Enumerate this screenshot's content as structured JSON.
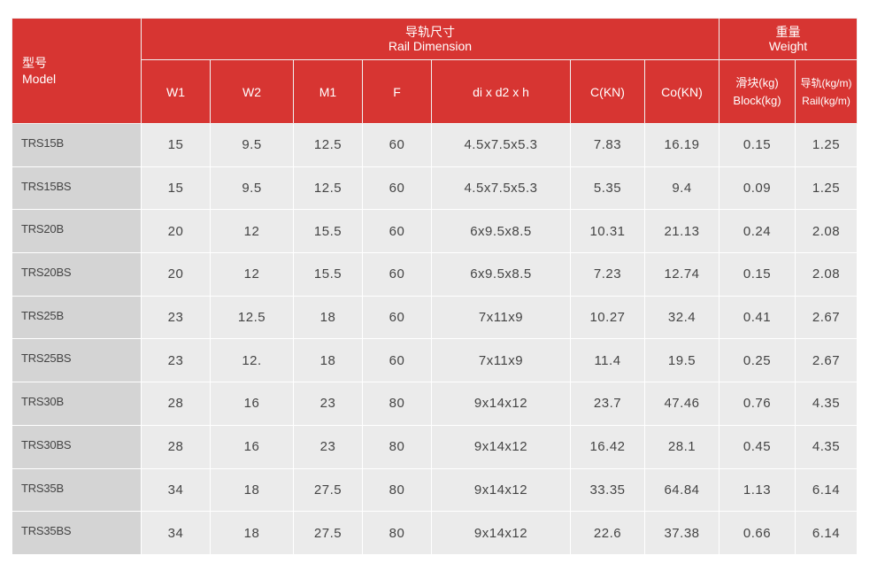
{
  "header": {
    "model": {
      "cn": "型号",
      "en": "Model"
    },
    "rail_dimension": {
      "cn": "导轨尺寸",
      "en": "Rail Dimension"
    },
    "weight": {
      "cn": "重量",
      "en": "Weight"
    },
    "columns": {
      "w1": "W1",
      "w2": "W2",
      "m1": "M1",
      "f": "F",
      "dims": "di x d2 x h",
      "c": "C(KN)",
      "co": "Co(KN)",
      "block_cn": "滑块(kg)",
      "block_en": "Block(kg)",
      "rail_cn": "导轨(kg/m)",
      "rail_en": "Rail(kg/m)"
    }
  },
  "rows": [
    {
      "model": "TRS15B",
      "w1": "15",
      "w2": "9.5",
      "m1": "12.5",
      "f": "60",
      "dims": "4.5x7.5x5.3",
      "c": "7.83",
      "co": "16.19",
      "block": "0.15",
      "rail": "1.25"
    },
    {
      "model": "TRS15BS",
      "w1": "15",
      "w2": "9.5",
      "m1": "12.5",
      "f": "60",
      "dims": "4.5x7.5x5.3",
      "c": "5.35",
      "co": "9.4",
      "block": "0.09",
      "rail": "1.25"
    },
    {
      "model": "TRS20B",
      "w1": "20",
      "w2": "12",
      "m1": "15.5",
      "f": "60",
      "dims": "6x9.5x8.5",
      "c": "10.31",
      "co": "21.13",
      "block": "0.24",
      "rail": "2.08"
    },
    {
      "model": "TRS20BS",
      "w1": "20",
      "w2": "12",
      "m1": "15.5",
      "f": "60",
      "dims": "6x9.5x8.5",
      "c": "7.23",
      "co": "12.74",
      "block": "0.15",
      "rail": "2.08"
    },
    {
      "model": "TRS25B",
      "w1": "23",
      "w2": "12.5",
      "m1": "18",
      "f": "60",
      "dims": "7x11x9",
      "c": "10.27",
      "co": "32.4",
      "block": "0.41",
      "rail": "2.67"
    },
    {
      "model": "TRS25BS",
      "w1": "23",
      "w2": "12.",
      "m1": "18",
      "f": "60",
      "dims": "7x11x9",
      "c": "11.4",
      "co": "19.5",
      "block": "0.25",
      "rail": "2.67"
    },
    {
      "model": "TRS30B",
      "w1": "28",
      "w2": "16",
      "m1": "23",
      "f": "80",
      "dims": "9x14x12",
      "c": "23.7",
      "co": "47.46",
      "block": "0.76",
      "rail": "4.35"
    },
    {
      "model": "TRS30BS",
      "w1": "28",
      "w2": "16",
      "m1": "23",
      "f": "80",
      "dims": "9x14x12",
      "c": "16.42",
      "co": "28.1",
      "block": "0.45",
      "rail": "4.35"
    },
    {
      "model": "TRS35B",
      "w1": "34",
      "w2": "18",
      "m1": "27.5",
      "f": "80",
      "dims": "9x14x12",
      "c": "33.35",
      "co": "64.84",
      "block": "1.13",
      "rail": "6.14"
    },
    {
      "model": "TRS35BS",
      "w1": "34",
      "w2": "18",
      "m1": "27.5",
      "f": "80",
      "dims": "9x14x12",
      "c": "22.6",
      "co": "37.38",
      "block": "0.66",
      "rail": "6.14"
    }
  ]
}
